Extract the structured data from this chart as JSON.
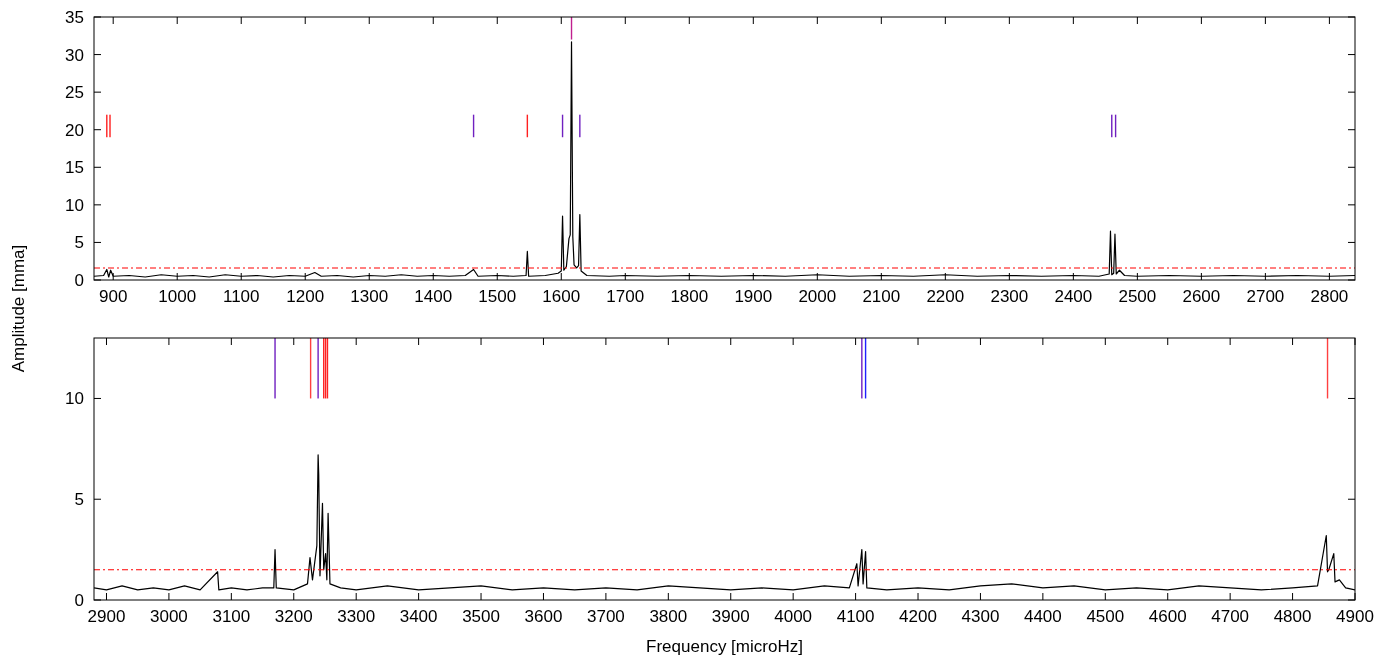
{
  "chart_data": [
    {
      "type": "line",
      "ylabel": "Amplitude [mma]",
      "xlim": [
        870,
        2840
      ],
      "xticks": [
        900,
        1000,
        1100,
        1200,
        1300,
        1400,
        1500,
        1600,
        1700,
        1800,
        1900,
        2000,
        2100,
        2200,
        2300,
        2400,
        2500,
        2600,
        2700,
        2800
      ],
      "ylim": [
        0,
        35
      ],
      "yticks": [
        0,
        5,
        10,
        15,
        20,
        25,
        30,
        35
      ],
      "grid": false,
      "series": [
        {
          "color": "#000000",
          "x": [
            870,
            885,
            890,
            893,
            896,
            900,
            925,
            950,
            975,
            1000,
            1025,
            1050,
            1075,
            1100,
            1125,
            1150,
            1175,
            1200,
            1215,
            1225,
            1250,
            1275,
            1300,
            1325,
            1350,
            1375,
            1400,
            1425,
            1450,
            1463,
            1470,
            1500,
            1525,
            1545,
            1547,
            1549,
            1575,
            1595,
            1600,
            1602,
            1604,
            1608,
            1612,
            1614,
            1616,
            1618,
            1620,
            1624,
            1627,
            1629,
            1631,
            1640,
            1675,
            1700,
            1750,
            1800,
            1850,
            1900,
            1950,
            2000,
            2050,
            2100,
            2150,
            2200,
            2250,
            2300,
            2350,
            2400,
            2440,
            2456,
            2458,
            2460,
            2463,
            2465,
            2467,
            2472,
            2480,
            2500,
            2550,
            2600,
            2650,
            2700,
            2750,
            2800,
            2840
          ],
          "values": [
            0.5,
            0.6,
            1.4,
            0.4,
            1.3,
            0.5,
            0.6,
            0.4,
            0.7,
            0.5,
            0.6,
            0.4,
            0.7,
            0.5,
            0.6,
            0.4,
            0.6,
            0.5,
            1.0,
            0.5,
            0.6,
            0.4,
            0.6,
            0.5,
            0.7,
            0.5,
            0.6,
            0.5,
            0.6,
            1.4,
            0.5,
            0.6,
            0.5,
            0.6,
            3.8,
            0.5,
            0.6,
            0.9,
            1.2,
            8.5,
            1.3,
            1.8,
            5.5,
            6.0,
            31.7,
            5.8,
            2.0,
            1.6,
            1.9,
            8.7,
            1.2,
            0.6,
            0.5,
            0.6,
            0.5,
            0.6,
            0.5,
            0.6,
            0.5,
            0.7,
            0.5,
            0.6,
            0.5,
            0.7,
            0.5,
            0.6,
            0.5,
            0.6,
            0.5,
            0.8,
            6.5,
            0.7,
            0.9,
            6.1,
            0.8,
            1.3,
            0.6,
            0.5,
            0.6,
            0.5,
            0.6,
            0.5,
            0.6,
            0.5,
            0.6
          ]
        },
        {
          "type": "bar",
          "x": [
            890,
            895,
            1463,
            1547,
            1602,
            1616,
            1629,
            2460,
            2466
          ],
          "base": [
            19,
            19,
            19,
            19,
            19,
            32,
            19,
            19,
            19
          ],
          "values": [
            3,
            3,
            3,
            3,
            3,
            3,
            3,
            3,
            3
          ],
          "colors": [
            "#ff2020",
            "#ff2020",
            "#7020c0",
            "#ff2020",
            "#7020c0",
            "#c0208f",
            "#7020c0",
            "#7020c0",
            "#7020c0"
          ]
        }
      ],
      "ref_lines": [
        {
          "axis": "y",
          "value": 1.6,
          "color": "#ff0000",
          "line_style": "dashed"
        }
      ]
    },
    {
      "type": "line",
      "xlabel": "Frequency [microHz]",
      "xlim": [
        2880,
        4900
      ],
      "xticks": [
        2900,
        3000,
        3100,
        3200,
        3300,
        3400,
        3500,
        3600,
        3700,
        3800,
        3900,
        4000,
        4100,
        4200,
        4300,
        4400,
        4500,
        4600,
        4700,
        4800,
        4900
      ],
      "ylim": [
        0,
        13
      ],
      "yticks": [
        0,
        5,
        10
      ],
      "grid": false,
      "series": [
        {
          "color": "#000000",
          "x": [
            2880,
            2900,
            2925,
            2950,
            2975,
            3000,
            3025,
            3050,
            3078,
            3080,
            3100,
            3125,
            3150,
            3168,
            3170,
            3172,
            3200,
            3222,
            3226,
            3230,
            3237,
            3239,
            3240,
            3242,
            3246,
            3248,
            3251,
            3253,
            3255,
            3258,
            3275,
            3300,
            3350,
            3400,
            3450,
            3500,
            3550,
            3600,
            3650,
            3700,
            3750,
            3800,
            3850,
            3900,
            3950,
            4000,
            4050,
            4090,
            4102,
            4104,
            4110,
            4112,
            4116,
            4118,
            4150,
            4200,
            4250,
            4300,
            4350,
            4400,
            4450,
            4500,
            4550,
            4600,
            4650,
            4700,
            4750,
            4800,
            4840,
            4854,
            4856,
            4858,
            4866,
            4868,
            4875,
            4885,
            4900
          ],
          "values": [
            0.6,
            0.5,
            0.7,
            0.5,
            0.6,
            0.5,
            0.7,
            0.5,
            1.4,
            0.5,
            0.6,
            0.5,
            0.6,
            0.6,
            2.5,
            0.6,
            0.5,
            0.8,
            2.1,
            1.0,
            2.7,
            7.2,
            6.2,
            1.2,
            4.8,
            1.5,
            2.3,
            1.0,
            4.3,
            0.8,
            0.6,
            0.5,
            0.7,
            0.5,
            0.6,
            0.7,
            0.5,
            0.6,
            0.5,
            0.6,
            0.5,
            0.7,
            0.6,
            0.5,
            0.6,
            0.5,
            0.7,
            0.6,
            1.8,
            0.7,
            2.5,
            0.8,
            2.4,
            0.6,
            0.5,
            0.6,
            0.5,
            0.7,
            0.8,
            0.6,
            0.7,
            0.5,
            0.6,
            0.5,
            0.7,
            0.6,
            0.5,
            0.6,
            0.7,
            3.2,
            1.4,
            1.5,
            2.3,
            0.9,
            1.0,
            0.6,
            0.5
          ]
        },
        {
          "type": "bar",
          "x": [
            3170,
            3227,
            3239,
            3248,
            3251,
            3254,
            4110,
            4116,
            4856
          ],
          "base": [
            10,
            10,
            10,
            10,
            10,
            10,
            10,
            10,
            10
          ],
          "values": [
            3,
            3,
            3,
            3,
            3,
            3,
            3,
            3,
            3
          ],
          "colors": [
            "#7020c0",
            "#ff4040",
            "#7020c0",
            "#ff2020",
            "#ff2020",
            "#ff2020",
            "#7020c0",
            "#2020ff",
            "#ff4040"
          ]
        }
      ],
      "ref_lines": [
        {
          "axis": "y",
          "value": 1.5,
          "color": "#ff0000",
          "line_style": "dashed"
        }
      ]
    }
  ]
}
